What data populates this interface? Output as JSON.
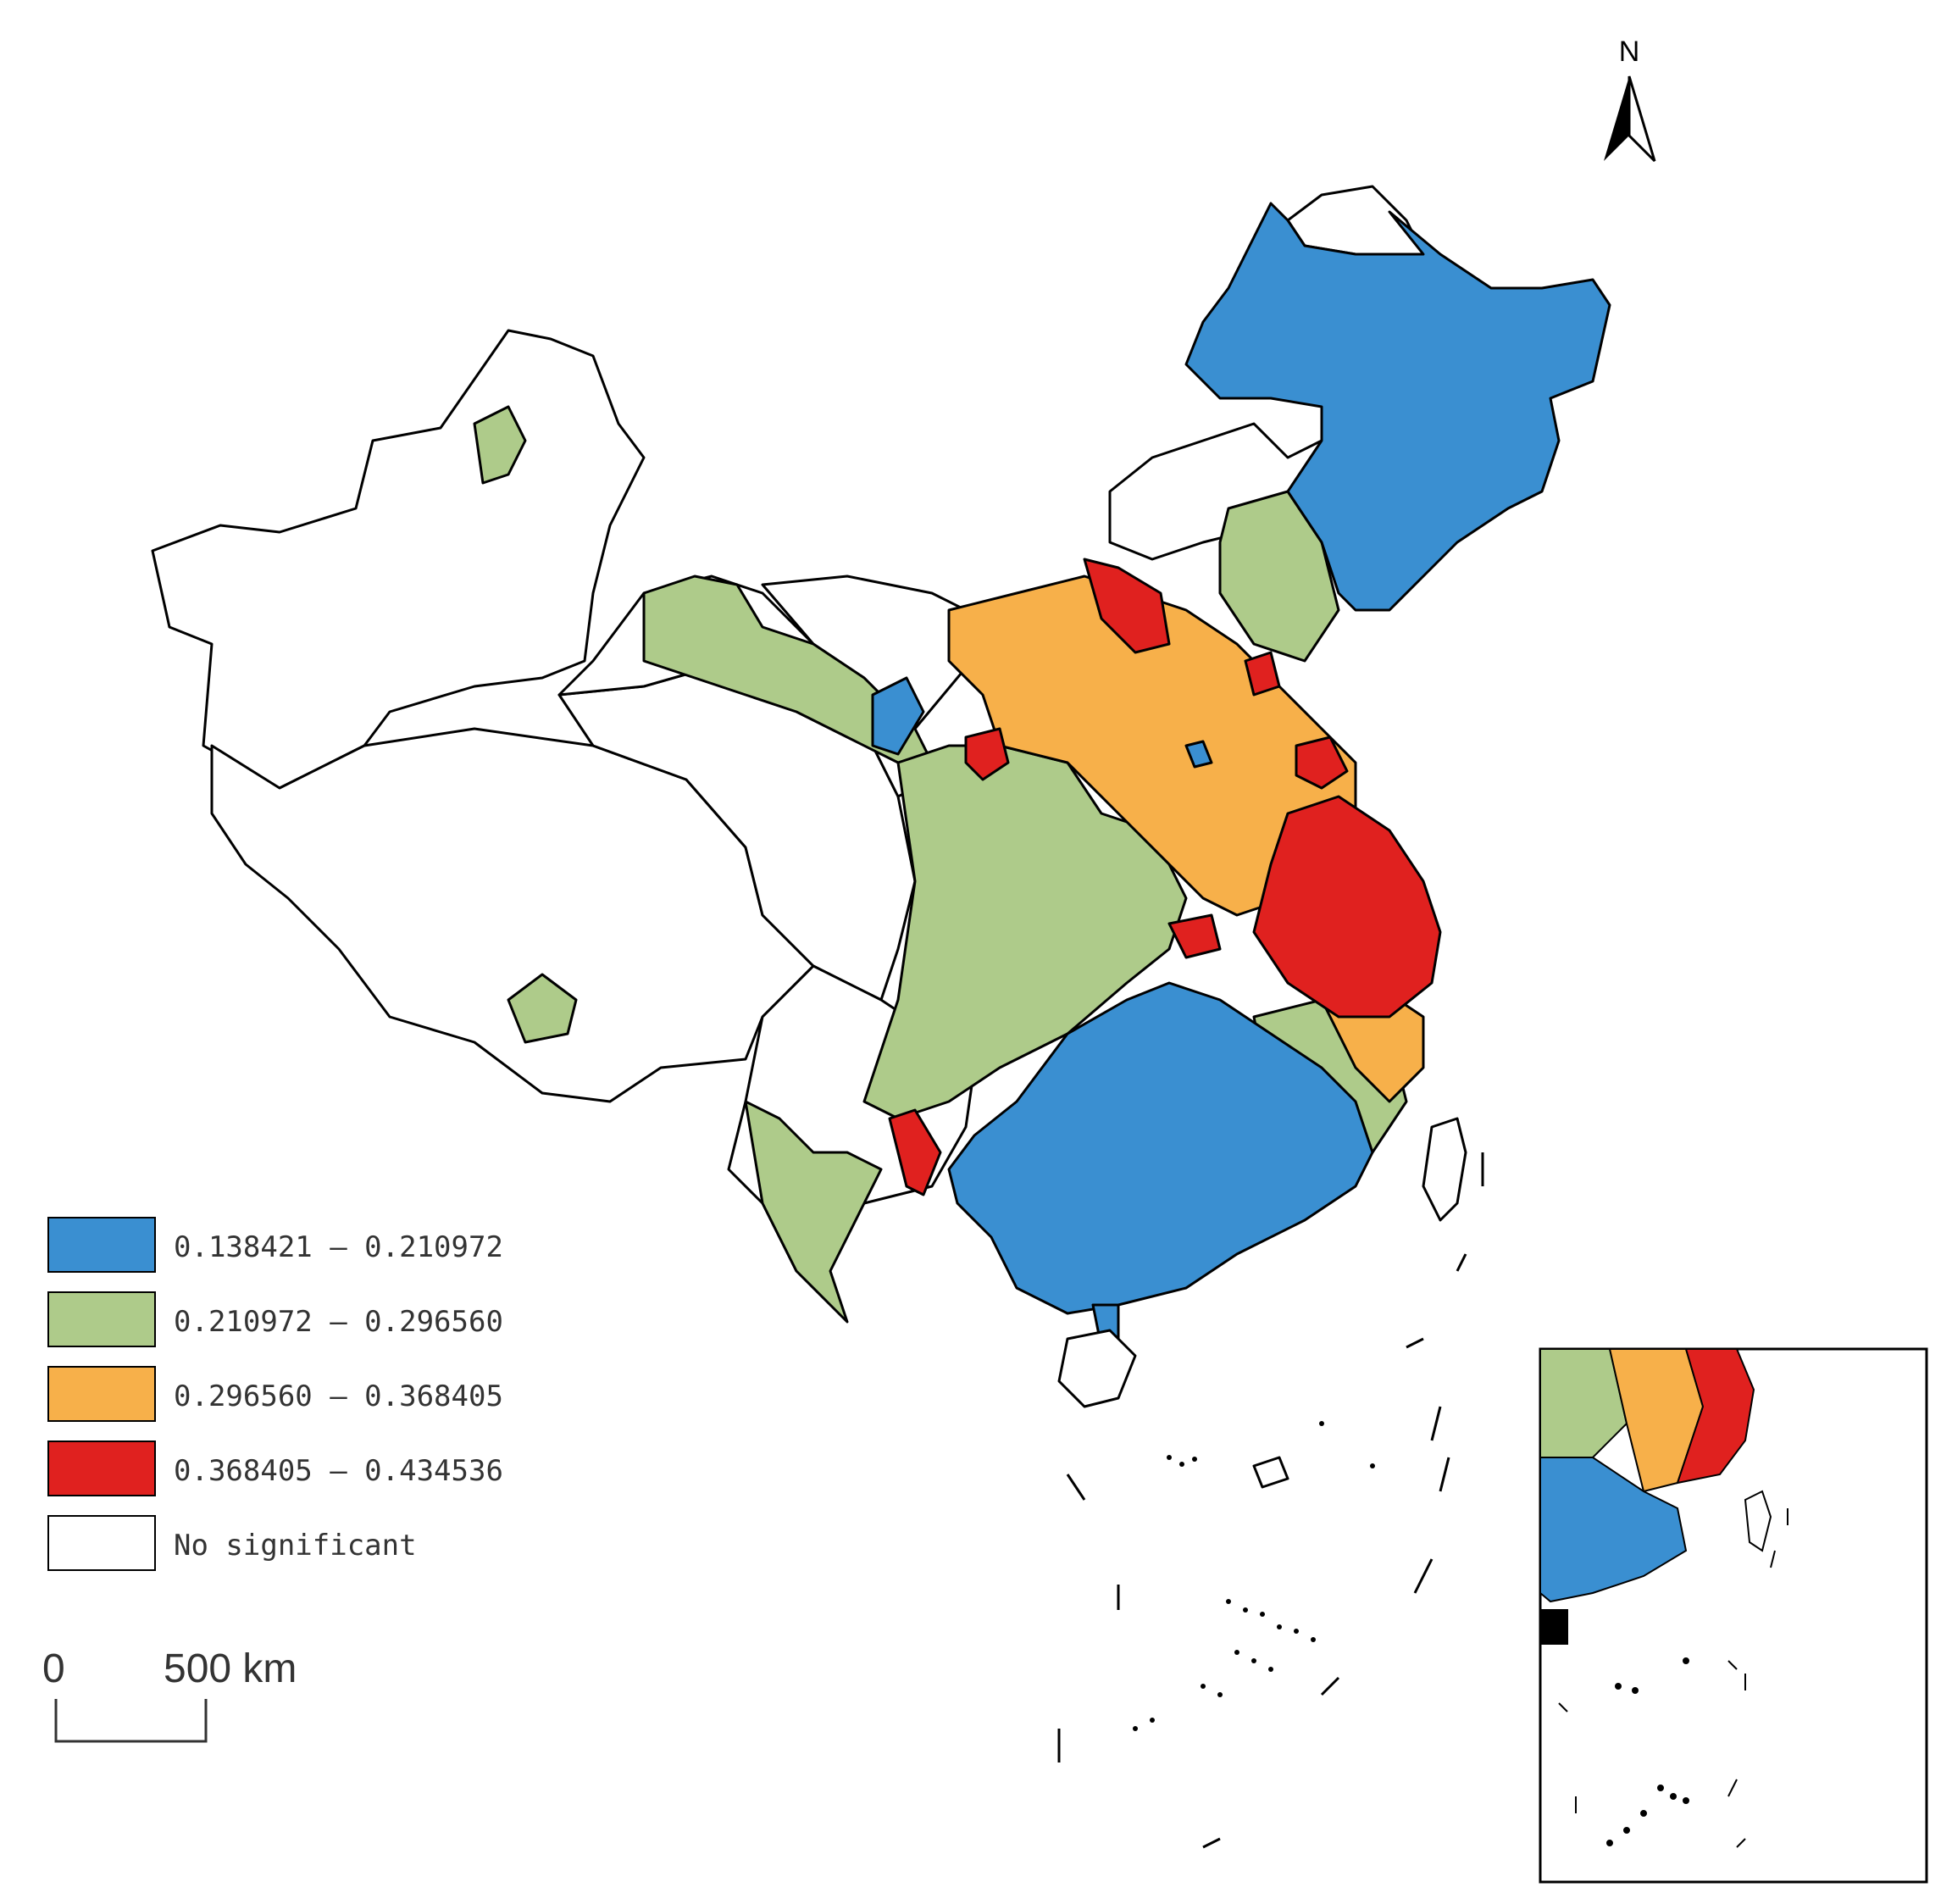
{
  "north_arrow": {
    "label": "N"
  },
  "legend": {
    "items": [
      {
        "label": "0.138421 — 0.210972",
        "color": "#3a8fd1"
      },
      {
        "label": "0.210972 — 0.296560",
        "color": "#aecb8a"
      },
      {
        "label": "0.296560 — 0.368405",
        "color": "#f7b04a"
      },
      {
        "label": "0.368405 — 0.434536",
        "color": "#e0211f"
      },
      {
        "label": "No significant",
        "color": "#ffffff"
      }
    ]
  },
  "scale_bar": {
    "start_label": "0",
    "end_label": "500 km"
  },
  "colors": {
    "outline": "#000000",
    "background": "#ffffff"
  }
}
